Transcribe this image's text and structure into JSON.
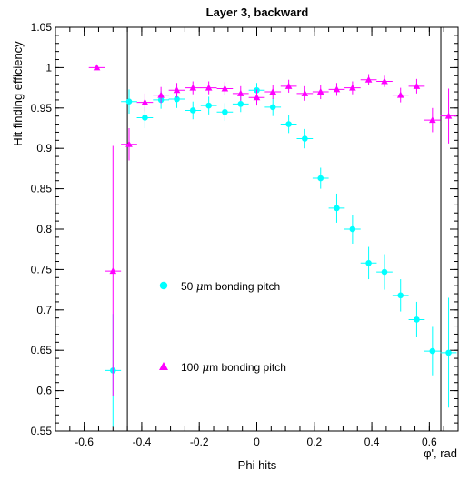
{
  "chart_data": {
    "type": "scatter",
    "title": "Layer 3, backward",
    "xlabel": "Phi hits",
    "xunit_label": "φ', rad",
    "ylabel": "Hit finding efficiency",
    "xlim": [
      -0.7,
      0.7
    ],
    "ylim": [
      0.55,
      1.05
    ],
    "x_ticks": [
      -0.6,
      -0.4,
      -0.2,
      0,
      0.2,
      0.4,
      0.6
    ],
    "y_ticks": [
      0.55,
      0.6,
      0.65,
      0.7,
      0.75,
      0.8,
      0.85,
      0.9,
      0.95,
      1,
      1.05
    ],
    "x_tick_labels": [
      "-0.6",
      "-0.4",
      "-0.2",
      "0",
      "0.2",
      "0.4",
      "0.6"
    ],
    "y_tick_labels": [
      "0.55",
      "0.6",
      "0.65",
      "0.7",
      "0.75",
      "0.8",
      "0.85",
      "0.9",
      "0.95",
      "1",
      "1.05"
    ],
    "grid": false,
    "x_bin_half_width": 0.028,
    "vertical_lines": [
      -0.45,
      0.64
    ],
    "series": [
      {
        "name": "50 μm bonding pitch",
        "marker": "circle",
        "color": "#00ffff",
        "legend_label_prefix": "50 ",
        "legend_label_mu": "μ",
        "legend_label_suffix": "m bonding pitch",
        "points": [
          {
            "x": -0.5,
            "y": 0.625,
            "err": 0.07
          },
          {
            "x": -0.444,
            "y": 0.958,
            "err": 0.015
          },
          {
            "x": -0.389,
            "y": 0.938,
            "err": 0.013
          },
          {
            "x": -0.333,
            "y": 0.96,
            "err": 0.011
          },
          {
            "x": -0.278,
            "y": 0.961,
            "err": 0.011
          },
          {
            "x": -0.222,
            "y": 0.947,
            "err": 0.011
          },
          {
            "x": -0.167,
            "y": 0.953,
            "err": 0.011
          },
          {
            "x": -0.111,
            "y": 0.945,
            "err": 0.011
          },
          {
            "x": -0.056,
            "y": 0.955,
            "err": 0.01
          },
          {
            "x": 0.0,
            "y": 0.972,
            "err": 0.009
          },
          {
            "x": 0.056,
            "y": 0.951,
            "err": 0.011
          },
          {
            "x": 0.111,
            "y": 0.93,
            "err": 0.011
          },
          {
            "x": 0.167,
            "y": 0.912,
            "err": 0.012
          },
          {
            "x": 0.222,
            "y": 0.863,
            "err": 0.013
          },
          {
            "x": 0.278,
            "y": 0.826,
            "err": 0.018
          },
          {
            "x": 0.333,
            "y": 0.8,
            "err": 0.018
          },
          {
            "x": 0.389,
            "y": 0.758,
            "err": 0.02
          },
          {
            "x": 0.444,
            "y": 0.747,
            "err": 0.022
          },
          {
            "x": 0.5,
            "y": 0.718,
            "err": 0.02
          },
          {
            "x": 0.556,
            "y": 0.688,
            "err": 0.022
          },
          {
            "x": 0.611,
            "y": 0.649,
            "err": 0.03
          },
          {
            "x": 0.667,
            "y": 0.647,
            "err": 0.068
          }
        ]
      },
      {
        "name": "100 μm bonding pitch",
        "marker": "triangle",
        "color": "#ff00ff",
        "legend_label_prefix": "100 ",
        "legend_label_mu": "μ",
        "legend_label_suffix": "m bonding pitch",
        "points": [
          {
            "x": -0.556,
            "y": 1.0,
            "err": 0.002
          },
          {
            "x": -0.5,
            "y": 0.748,
            "err": 0.155
          },
          {
            "x": -0.444,
            "y": 0.905,
            "err": 0.02
          },
          {
            "x": -0.389,
            "y": 0.957,
            "err": 0.011
          },
          {
            "x": -0.333,
            "y": 0.966,
            "err": 0.01
          },
          {
            "x": -0.278,
            "y": 0.972,
            "err": 0.009
          },
          {
            "x": -0.222,
            "y": 0.975,
            "err": 0.008
          },
          {
            "x": -0.167,
            "y": 0.975,
            "err": 0.008
          },
          {
            "x": -0.111,
            "y": 0.974,
            "err": 0.008
          },
          {
            "x": -0.056,
            "y": 0.968,
            "err": 0.009
          },
          {
            "x": 0.0,
            "y": 0.963,
            "err": 0.01
          },
          {
            "x": 0.056,
            "y": 0.97,
            "err": 0.009
          },
          {
            "x": 0.111,
            "y": 0.977,
            "err": 0.008
          },
          {
            "x": 0.167,
            "y": 0.968,
            "err": 0.009
          },
          {
            "x": 0.222,
            "y": 0.97,
            "err": 0.009
          },
          {
            "x": 0.278,
            "y": 0.973,
            "err": 0.008
          },
          {
            "x": 0.333,
            "y": 0.975,
            "err": 0.008
          },
          {
            "x": 0.389,
            "y": 0.985,
            "err": 0.007
          },
          {
            "x": 0.444,
            "y": 0.983,
            "err": 0.007
          },
          {
            "x": 0.5,
            "y": 0.966,
            "err": 0.009
          },
          {
            "x": 0.556,
            "y": 0.977,
            "err": 0.009
          },
          {
            "x": 0.611,
            "y": 0.935,
            "err": 0.015
          },
          {
            "x": 0.667,
            "y": 0.94,
            "err": 0.034
          }
        ]
      }
    ]
  }
}
